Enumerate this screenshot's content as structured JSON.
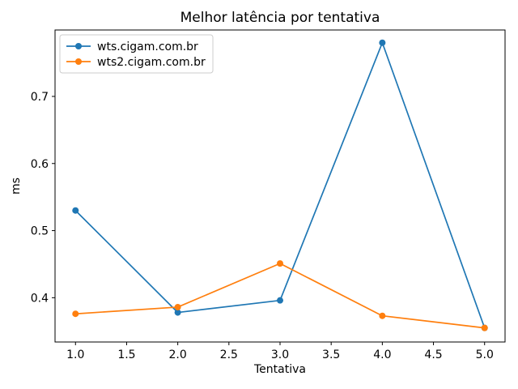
{
  "chart_data": {
    "type": "line",
    "title": "Melhor latência por tentativa",
    "xlabel": "Tentativa",
    "ylabel": "ms",
    "x": [
      1,
      2,
      3,
      4,
      5
    ],
    "series": [
      {
        "name": "wts.cigam.com.br",
        "color": "#1f77b4",
        "values": [
          0.53,
          0.378,
          0.396,
          0.78,
          0.355
        ]
      },
      {
        "name": "wts2.cigam.com.br",
        "color": "#ff7f0e",
        "values": [
          0.376,
          0.386,
          0.451,
          0.373,
          0.355
        ]
      }
    ],
    "xticks": [
      1.0,
      1.5,
      2.0,
      2.5,
      3.0,
      3.5,
      4.0,
      4.5,
      5.0
    ],
    "xtick_labels": [
      "1.0",
      "1.5",
      "2.0",
      "2.5",
      "3.0",
      "3.5",
      "4.0",
      "4.5",
      "5.0"
    ],
    "yticks": [
      0.4,
      0.5,
      0.6,
      0.7
    ],
    "ytick_labels": [
      "0.4",
      "0.5",
      "0.6",
      "0.7"
    ],
    "xlim": [
      0.8,
      5.2
    ],
    "ylim": [
      0.334,
      0.799
    ],
    "grid": false,
    "legend_position": "upper left",
    "marker": "circle",
    "axis_color": "#000000",
    "legend_border_color": "#cccccc",
    "background_color": "#ffffff"
  }
}
